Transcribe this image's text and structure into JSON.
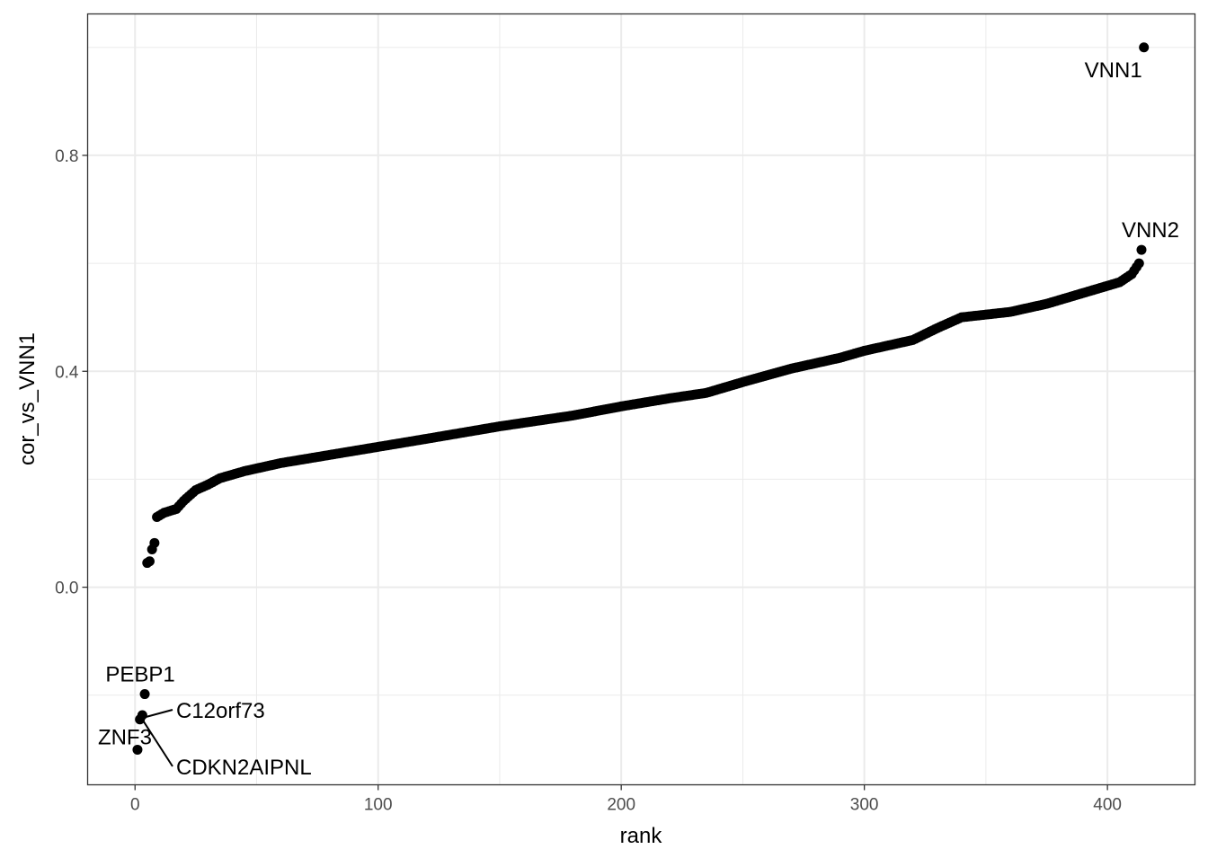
{
  "chart_data": {
    "type": "scatter",
    "title": "",
    "xlabel": "rank",
    "ylabel": "cor_vs_VNN1",
    "xlim": [
      -19.5,
      436
    ],
    "ylim": [
      -0.366,
      1.062
    ],
    "x_ticks": [
      {
        "value": 0,
        "label": "0"
      },
      {
        "value": 100,
        "label": "100"
      },
      {
        "value": 200,
        "label": "200"
      },
      {
        "value": 300,
        "label": "300"
      },
      {
        "value": 400,
        "label": "400"
      }
    ],
    "y_ticks": [
      {
        "value": 0.0,
        "label": "0.0"
      },
      {
        "value": 0.4,
        "label": "0.4"
      },
      {
        "value": 0.8,
        "label": "0.8"
      }
    ],
    "x_minor": [
      50,
      150,
      250,
      350
    ],
    "y_minor": [
      -0.2,
      0.2,
      0.6,
      1.0
    ],
    "grid": true,
    "legend": "none",
    "marker_color": "#000000",
    "gridline_color": "#ebebeb",
    "panel_border_color": "#333333",
    "curve_knots": [
      [
        9,
        0.13
      ],
      [
        12,
        0.138
      ],
      [
        17,
        0.145
      ],
      [
        20,
        0.16
      ],
      [
        25,
        0.18
      ],
      [
        30,
        0.19
      ],
      [
        35,
        0.202
      ],
      [
        45,
        0.215
      ],
      [
        60,
        0.23
      ],
      [
        80,
        0.245
      ],
      [
        100,
        0.26
      ],
      [
        120,
        0.275
      ],
      [
        150,
        0.298
      ],
      [
        180,
        0.318
      ],
      [
        200,
        0.335
      ],
      [
        220,
        0.35
      ],
      [
        235,
        0.36
      ],
      [
        250,
        0.38
      ],
      [
        270,
        0.405
      ],
      [
        290,
        0.425
      ],
      [
        300,
        0.438
      ],
      [
        320,
        0.458
      ],
      [
        330,
        0.48
      ],
      [
        340,
        0.5
      ],
      [
        360,
        0.51
      ],
      [
        375,
        0.525
      ],
      [
        390,
        0.545
      ],
      [
        405,
        0.565
      ],
      [
        410,
        0.58
      ],
      [
        413,
        0.6
      ]
    ],
    "low_points": [
      {
        "x": 5,
        "y": 0.045
      },
      {
        "x": 6,
        "y": 0.048
      },
      {
        "x": 7,
        "y": 0.07
      },
      {
        "x": 8,
        "y": 0.082
      }
    ],
    "labeled_points": [
      {
        "label": "ZNF3",
        "x": 1,
        "y": -0.301
      },
      {
        "label": "CDKN2AIPNL",
        "x": 2,
        "y": -0.245
      },
      {
        "label": "C12orf73",
        "x": 3,
        "y": -0.237
      },
      {
        "label": "PEBP1",
        "x": 4,
        "y": -0.198
      },
      {
        "label": "VNN2",
        "x": 414,
        "y": 0.625
      },
      {
        "label": "VNN1",
        "x": 415,
        "y": 1.0
      }
    ]
  }
}
